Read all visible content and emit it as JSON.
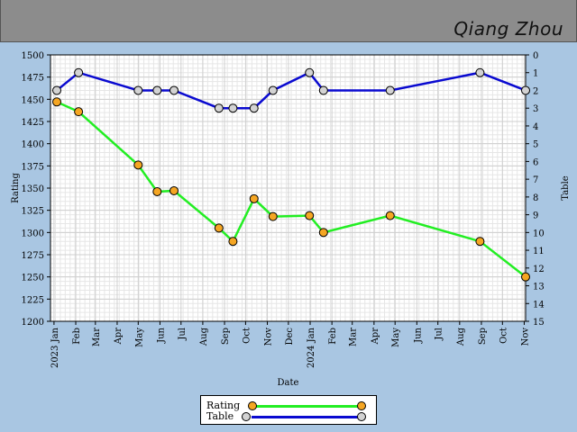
{
  "header": {
    "player_name": "Qiang Zhou"
  },
  "colors": {
    "background": "#a9c6e2",
    "header": "#8c8c8c",
    "rating_line": "#22ee22",
    "rating_marker": "#f5a623",
    "table_line": "#0a0ad0",
    "table_marker": "#d3d3d3"
  },
  "chart_data": {
    "type": "line",
    "xlabel": "Date",
    "ylabel": "Rating",
    "y2label": "Table",
    "grid": true,
    "legend_position": "bottom-center",
    "xlim": [
      "2022-12-27",
      "2024-11-03"
    ],
    "ylim": [
      1200,
      1500
    ],
    "y2lim": [
      15,
      0
    ],
    "x_ticks": [
      {
        "date": "2023-01-01",
        "label": "2023 Jan"
      },
      {
        "date": "2023-02-01",
        "label": "Feb"
      },
      {
        "date": "2023-03-01",
        "label": "Mar"
      },
      {
        "date": "2023-04-01",
        "label": "Apr"
      },
      {
        "date": "2023-05-01",
        "label": "May"
      },
      {
        "date": "2023-06-01",
        "label": "Jun"
      },
      {
        "date": "2023-07-01",
        "label": "Jul"
      },
      {
        "date": "2023-08-01",
        "label": "Aug"
      },
      {
        "date": "2023-09-01",
        "label": "Sep"
      },
      {
        "date": "2023-10-01",
        "label": "Oct"
      },
      {
        "date": "2023-11-01",
        "label": "Nov"
      },
      {
        "date": "2023-12-01",
        "label": "Dec"
      },
      {
        "date": "2024-01-01",
        "label": "2024 Jan"
      },
      {
        "date": "2024-02-01",
        "label": "Feb"
      },
      {
        "date": "2024-03-01",
        "label": "Mar"
      },
      {
        "date": "2024-04-01",
        "label": "Apr"
      },
      {
        "date": "2024-05-01",
        "label": "May"
      },
      {
        "date": "2024-06-01",
        "label": "Jun"
      },
      {
        "date": "2024-07-01",
        "label": "Jul"
      },
      {
        "date": "2024-08-01",
        "label": "Aug"
      },
      {
        "date": "2024-09-01",
        "label": "Sep"
      },
      {
        "date": "2024-10-01",
        "label": "Oct"
      },
      {
        "date": "2024-11-01",
        "label": "Nov"
      }
    ],
    "y_ticks": [
      1200,
      1225,
      1250,
      1275,
      1300,
      1325,
      1350,
      1375,
      1400,
      1425,
      1450,
      1475,
      1500
    ],
    "y2_ticks": [
      0,
      1,
      2,
      3,
      4,
      5,
      6,
      7,
      8,
      9,
      10,
      11,
      12,
      13,
      14,
      15
    ],
    "series": [
      {
        "name": "Rating",
        "axis": "left",
        "x": [
          "2023-01-05",
          "2023-02-05",
          "2023-05-01",
          "2023-05-28",
          "2023-06-21",
          "2023-08-24",
          "2023-09-13",
          "2023-10-13",
          "2023-11-09",
          "2023-12-31",
          "2024-01-20",
          "2024-04-24",
          "2024-08-30",
          "2024-11-03"
        ],
        "values": [
          1447,
          1436,
          1376,
          1346,
          1347,
          1305,
          1290,
          1338,
          1318,
          1319,
          1300,
          1319,
          1290,
          1250
        ]
      },
      {
        "name": "Table",
        "axis": "right",
        "x": [
          "2023-01-05",
          "2023-02-05",
          "2023-05-01",
          "2023-05-28",
          "2023-06-21",
          "2023-08-24",
          "2023-09-13",
          "2023-10-13",
          "2023-11-09",
          "2023-12-31",
          "2024-01-20",
          "2024-04-24",
          "2024-08-30",
          "2024-11-03"
        ],
        "values": [
          2,
          1,
          2,
          2,
          2,
          3,
          3,
          3,
          2,
          1,
          2,
          2,
          1,
          2
        ]
      }
    ]
  }
}
